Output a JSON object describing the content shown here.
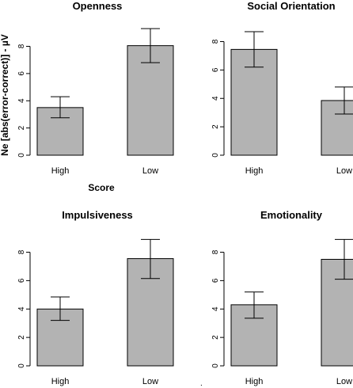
{
  "chart_data": [
    {
      "type": "bar",
      "title": "Openness",
      "categories": [
        "High",
        "Low"
      ],
      "values": [
        3.5,
        8.05
      ],
      "error_low": [
        2.75,
        6.8
      ],
      "error_high": [
        4.3,
        9.3
      ],
      "ylim": [
        0,
        9.6
      ],
      "yticks": [
        0,
        2,
        4,
        6,
        8
      ],
      "ylabel": "Ne [abs(error-correct)] - µV",
      "xlabel": "Score"
    },
    {
      "type": "bar",
      "title": "Social Orientation",
      "categories": [
        "High",
        "Low"
      ],
      "values": [
        7.45,
        3.85
      ],
      "error_low": [
        6.2,
        2.9
      ],
      "error_high": [
        8.7,
        4.8
      ],
      "ylim": [
        0,
        9.2
      ],
      "yticks": [
        0,
        2,
        4,
        6,
        8
      ],
      "ylabel": "",
      "xlabel": ""
    },
    {
      "type": "bar",
      "title": "Impulsiveness",
      "categories": [
        "High",
        "Low"
      ],
      "values": [
        4.0,
        7.55
      ],
      "error_low": [
        3.2,
        6.15
      ],
      "error_high": [
        4.85,
        8.9
      ],
      "ylim": [
        0,
        9.2
      ],
      "yticks": [
        0,
        2,
        4,
        6,
        8
      ],
      "ylabel": "",
      "xlabel": ""
    },
    {
      "type": "bar",
      "title": "Emotionality",
      "categories": [
        "High",
        "Low"
      ],
      "values": [
        4.3,
        7.5
      ],
      "error_low": [
        3.35,
        6.1
      ],
      "error_high": [
        5.2,
        8.9
      ],
      "ylim": [
        0,
        9.2
      ],
      "yticks": [
        0,
        2,
        4,
        6,
        8
      ],
      "ylabel": "",
      "xlabel": ""
    }
  ],
  "stray_mark": "."
}
